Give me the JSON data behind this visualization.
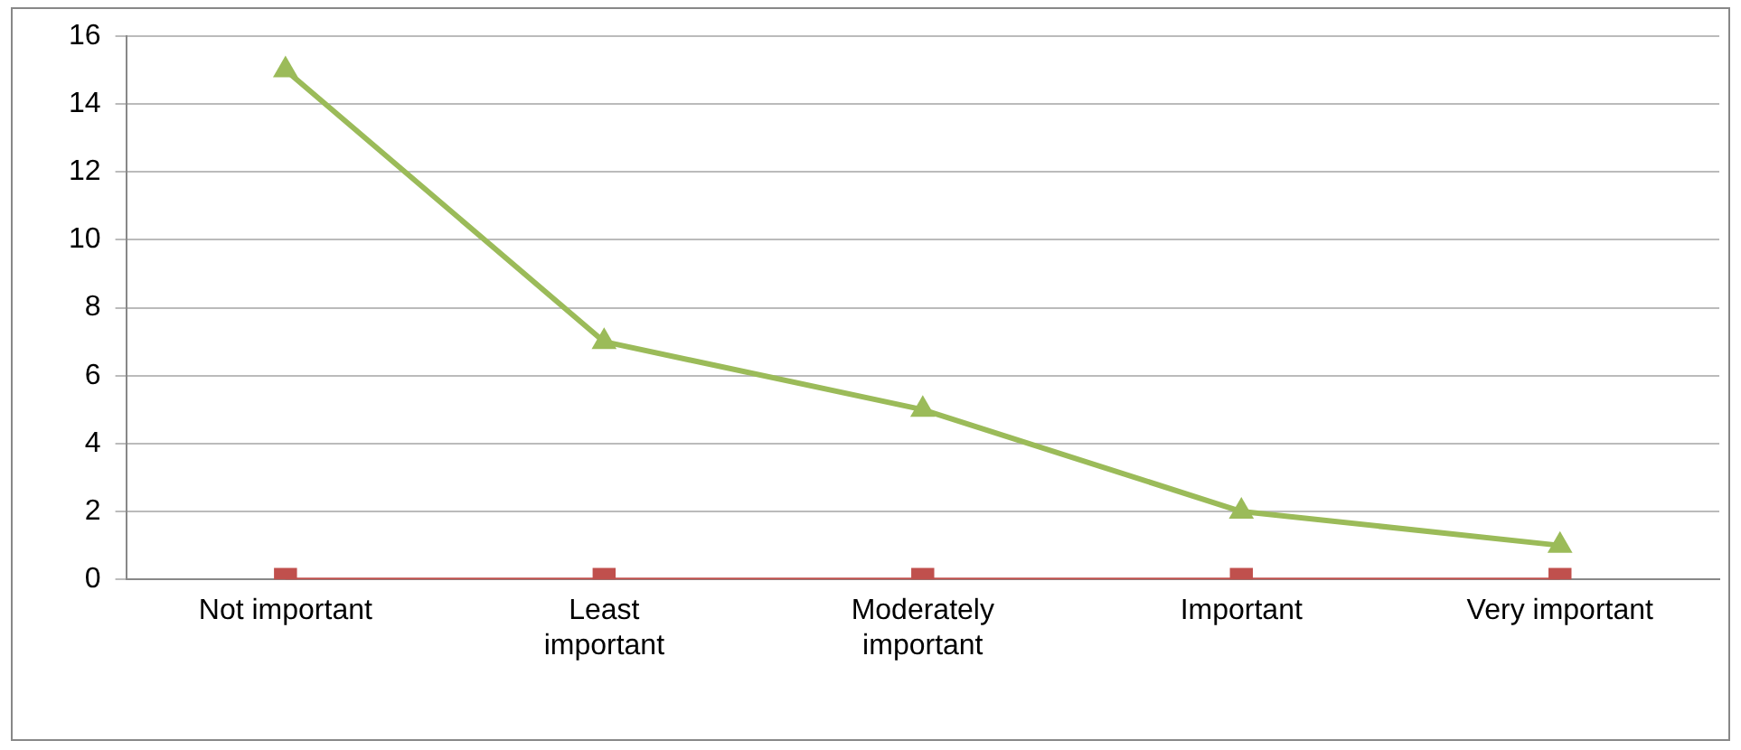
{
  "chart_data": {
    "type": "line",
    "categories": [
      "Not important",
      "Least important",
      "Moderately important",
      "Important",
      "Very important"
    ],
    "series": [
      {
        "color": "#c0504d",
        "values": [
          0,
          0,
          0,
          0,
          0
        ],
        "marker": "square"
      },
      {
        "color": "#9bbb59",
        "values": [
          15,
          7,
          5,
          2,
          1
        ],
        "marker": "triangle"
      }
    ],
    "ylim": [
      0,
      16
    ],
    "yticks": [
      0,
      2,
      4,
      6,
      8,
      10,
      12,
      14,
      16
    ],
    "grid": "y",
    "legend": false
  }
}
